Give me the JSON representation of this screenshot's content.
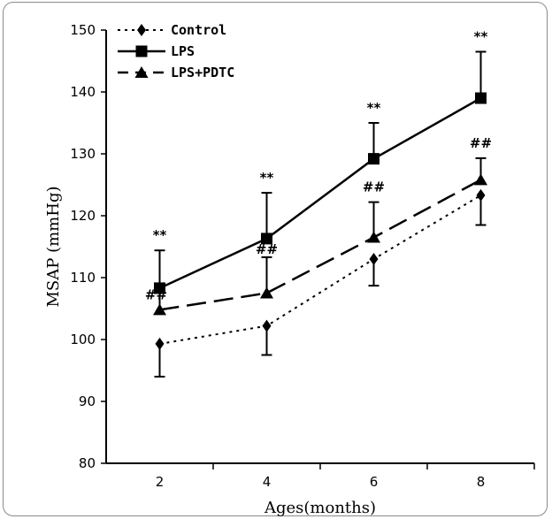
{
  "chart_data": {
    "type": "line",
    "title": "",
    "xlabel": "Ages(months)",
    "ylabel": "MSAP (mmHg)",
    "x": [
      2,
      4,
      6,
      8
    ],
    "xticks": [
      "2",
      "4",
      "6",
      "8"
    ],
    "xlim": [
      1,
      9
    ],
    "ylim": [
      80,
      150
    ],
    "yticks": [
      "80",
      "90",
      "100",
      "110",
      "120",
      "130",
      "140",
      "150"
    ],
    "legend_position": "top-left",
    "series": [
      {
        "name": "Control",
        "marker": "diamond",
        "line_style": "dotted",
        "values": [
          99.3,
          102.2,
          113.0,
          123.3
        ],
        "error_bars": [
          {
            "low": 94.0
          },
          {
            "low": 97.5
          },
          {
            "low": 108.7
          },
          {
            "low": 118.5
          }
        ],
        "annotations": [
          "",
          "",
          "",
          ""
        ]
      },
      {
        "name": "LPS",
        "marker": "square",
        "line_style": "solid",
        "values": [
          108.3,
          116.3,
          129.2,
          139.0
        ],
        "error_bars": [
          {
            "high": 114.4
          },
          {
            "high": 123.7
          },
          {
            "high": 135.0
          },
          {
            "high": 146.5
          }
        ],
        "annotations": [
          "**",
          "**",
          "**",
          "**"
        ]
      },
      {
        "name": "LPS+PDTC",
        "marker": "triangle",
        "line_style": "dashed",
        "values": [
          104.8,
          107.5,
          116.5,
          125.8
        ],
        "error_bars": [
          {
            "high": 107.5
          },
          {
            "high": 113.3
          },
          {
            "high": 122.2
          },
          {
            "high": 129.3
          }
        ],
        "annotations": [
          "##",
          "##",
          "##",
          "##"
        ]
      }
    ]
  }
}
